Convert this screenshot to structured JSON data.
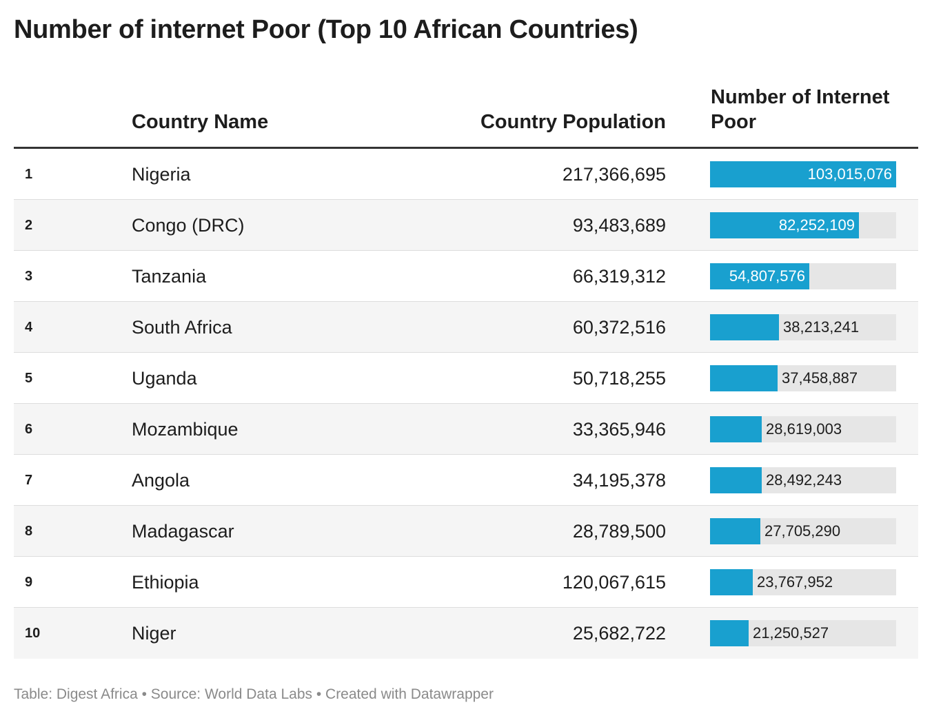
{
  "title": "Number of internet Poor (Top 10 African Countries)",
  "headers": {
    "country": "Country Name",
    "population": "Country Population",
    "poor": "Number of Internet Poor"
  },
  "colors": {
    "bar": "#19a0cf",
    "bar_track": "#e6e6e6",
    "row_shade": "#f5f5f5"
  },
  "chart_data": {
    "type": "table",
    "columns": [
      "",
      "Country Name",
      "Country Population",
      "Number of Internet Poor"
    ],
    "bar_column": "Number of Internet Poor",
    "bar_max": 103015076,
    "rows": [
      {
        "rank": "1",
        "country": "Nigeria",
        "population": "217,366,695",
        "poor": 103015076,
        "poor_label": "103,015,076"
      },
      {
        "rank": "2",
        "country": "Congo (DRC)",
        "population": "93,483,689",
        "poor": 82252109,
        "poor_label": "82,252,109"
      },
      {
        "rank": "3",
        "country": "Tanzania",
        "population": "66,319,312",
        "poor": 54807576,
        "poor_label": "54,807,576"
      },
      {
        "rank": "4",
        "country": "South Africa",
        "population": "60,372,516",
        "poor": 38213241,
        "poor_label": "38,213,241"
      },
      {
        "rank": "5",
        "country": "Uganda",
        "population": "50,718,255",
        "poor": 37458887,
        "poor_label": "37,458,887"
      },
      {
        "rank": "6",
        "country": "Mozambique",
        "population": "33,365,946",
        "poor": 28619003,
        "poor_label": "28,619,003"
      },
      {
        "rank": "7",
        "country": "Angola",
        "population": "34,195,378",
        "poor": 28492243,
        "poor_label": "28,492,243"
      },
      {
        "rank": "8",
        "country": "Madagascar",
        "population": "28,789,500",
        "poor": 27705290,
        "poor_label": "27,705,290"
      },
      {
        "rank": "9",
        "country": "Ethiopia",
        "population": "120,067,615",
        "poor": 23767952,
        "poor_label": "23,767,952"
      },
      {
        "rank": "10",
        "country": "Niger",
        "population": "25,682,722",
        "poor": 21250527,
        "poor_label": "21,250,527"
      }
    ]
  },
  "footer": "Table: Digest Africa • Source: World Data Labs • Created with Datawrapper"
}
